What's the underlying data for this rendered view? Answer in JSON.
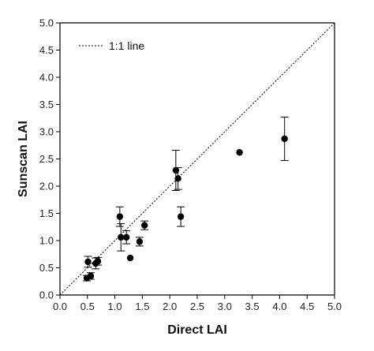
{
  "chart_data": {
    "type": "scatter",
    "xlabel": "Direct LAI",
    "ylabel": "Sunscan LAI",
    "xlim": [
      0.0,
      5.0
    ],
    "ylim": [
      0.0,
      5.0
    ],
    "xticks": [
      "0.0",
      "0.5",
      "1.0",
      "1.5",
      "2.0",
      "2.5",
      "3.0",
      "3.5",
      "4.0",
      "4.5",
      "5.0"
    ],
    "yticks": [
      "0.0",
      "0.5",
      "1.0",
      "1.5",
      "2.0",
      "2.5",
      "3.0",
      "3.5",
      "4.0",
      "4.5",
      "5.0"
    ],
    "grid": false,
    "legend": {
      "position": "top-left",
      "entries": [
        "1:1 line"
      ]
    },
    "reference_line": {
      "name": "1:1 line",
      "style": "dotted",
      "from": [
        0.0,
        0.0
      ],
      "to": [
        5.0,
        5.0
      ]
    },
    "points": [
      {
        "x": 0.49,
        "y": 0.31,
        "err": 0.05
      },
      {
        "x": 0.51,
        "y": 0.61,
        "err": 0.1
      },
      {
        "x": 0.56,
        "y": 0.35,
        "err": 0.06
      },
      {
        "x": 0.65,
        "y": 0.58,
        "err": 0.1
      },
      {
        "x": 0.69,
        "y": 0.62,
        "err": 0.07
      },
      {
        "x": 1.09,
        "y": 1.44,
        "err": 0.18
      },
      {
        "x": 1.11,
        "y": 1.06,
        "err": 0.25
      },
      {
        "x": 1.21,
        "y": 1.06,
        "err": 0.12
      },
      {
        "x": 1.28,
        "y": 0.68,
        "err": 0
      },
      {
        "x": 1.45,
        "y": 0.98,
        "err": 0.08
      },
      {
        "x": 1.54,
        "y": 1.28,
        "err": 0.08
      },
      {
        "x": 2.11,
        "y": 2.29,
        "err": 0.37
      },
      {
        "x": 2.15,
        "y": 2.14,
        "err": 0.2
      },
      {
        "x": 2.2,
        "y": 1.44,
        "err": 0.18
      },
      {
        "x": 3.27,
        "y": 2.62,
        "err": 0
      },
      {
        "x": 4.09,
        "y": 2.87,
        "err": 0.4
      }
    ]
  }
}
